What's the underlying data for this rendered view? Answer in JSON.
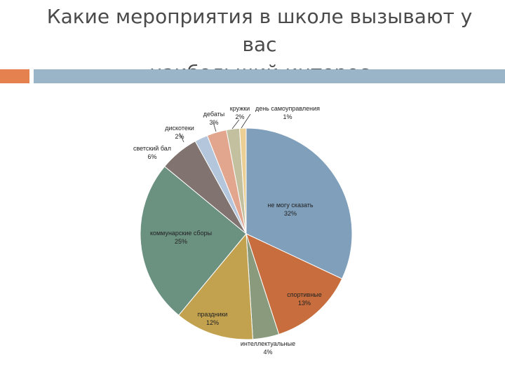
{
  "title_line1": "Какие мероприятия в школе вызывают у вас",
  "title_line2": "наибольший интерес",
  "colors": {
    "accent_square": "#e5804f",
    "accent_bar": "#9ab5c8"
  },
  "chart_data": {
    "type": "pie",
    "title": "",
    "start_angle_deg": 0,
    "direction": "clockwise",
    "legend": "none",
    "slices": [
      {
        "label": "не могу сказать",
        "value": 32,
        "value_label": "32%",
        "color": "#7f9fbb"
      },
      {
        "label": "спортивные",
        "value": 13,
        "value_label": "13%",
        "color": "#c86d3d"
      },
      {
        "label": "интеллектуальные",
        "value": 4,
        "value_label": "4%",
        "color": "#8a9a7c"
      },
      {
        "label": "праздники",
        "value": 12,
        "value_label": "12%",
        "color": "#c2a24f"
      },
      {
        "label": "коммунарские сборы",
        "value": 25,
        "value_label": "25%",
        "color": "#6b9181"
      },
      {
        "label": "светский бал",
        "value": 6,
        "value_label": "6%",
        "color": "#807370"
      },
      {
        "label": "дискотеки",
        "value": 2,
        "value_label": "2%",
        "color": "#b3c6dc"
      },
      {
        "label": "дебаты",
        "value": 3,
        "value_label": "3%",
        "color": "#e2a58e"
      },
      {
        "label": "кружки",
        "value": 2,
        "value_label": "2%",
        "color": "#c3c0a0"
      },
      {
        "label": "день самоуправления",
        "value": 1,
        "value_label": "1%",
        "color": "#ebcf95"
      }
    ]
  }
}
